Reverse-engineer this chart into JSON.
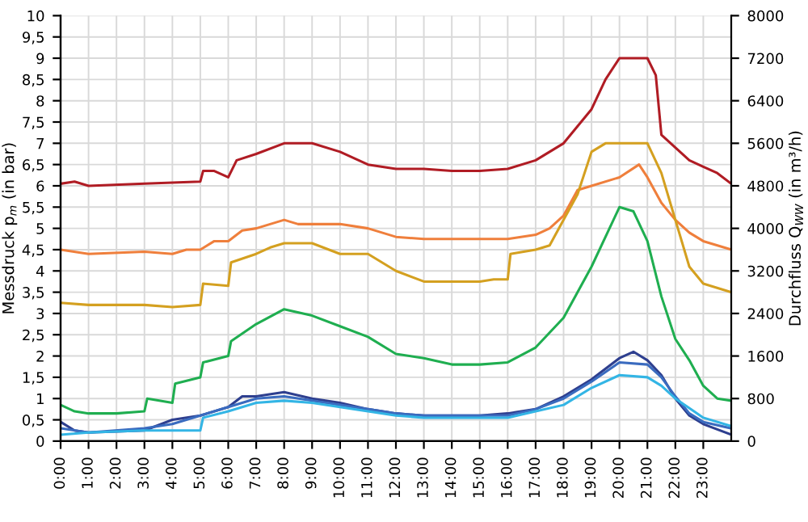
{
  "chart_data": {
    "type": "line",
    "ylabel": "Messdruck p$_{m}$ (in bar)",
    "y2label": "Durchfluss Q$_{WW}$ (in m³/h)",
    "xlim": [
      0,
      24
    ],
    "xticks": [
      {
        "value": 0,
        "label": "0:00"
      },
      {
        "value": 1,
        "label": "1:00"
      },
      {
        "value": 2,
        "label": "2:00"
      },
      {
        "value": 3,
        "label": "3:00"
      },
      {
        "value": 4,
        "label": "4:00"
      },
      {
        "value": 5,
        "label": "5:00"
      },
      {
        "value": 6,
        "label": "6:00"
      },
      {
        "value": 7,
        "label": "7:00"
      },
      {
        "value": 8,
        "label": "8:00"
      },
      {
        "value": 9,
        "label": "9:00"
      },
      {
        "value": 10,
        "label": "10:00"
      },
      {
        "value": 11,
        "label": "11:00"
      },
      {
        "value": 12,
        "label": "12:00"
      },
      {
        "value": 13,
        "label": "13:00"
      },
      {
        "value": 14,
        "label": "14:00"
      },
      {
        "value": 15,
        "label": "15:00"
      },
      {
        "value": 16,
        "label": "16:00"
      },
      {
        "value": 17,
        "label": "17:00"
      },
      {
        "value": 18,
        "label": "18:00"
      },
      {
        "value": 19,
        "label": "19:00"
      },
      {
        "value": 20,
        "label": "20:00"
      },
      {
        "value": 21,
        "label": "21:00"
      },
      {
        "value": 22,
        "label": "22:00"
      },
      {
        "value": 23,
        "label": "23:00"
      }
    ],
    "ylim": [
      0,
      10
    ],
    "yticks": [
      0,
      {
        "value": 0.5,
        "label": "0,5"
      },
      1,
      {
        "value": 1.5,
        "label": "1,5"
      },
      2,
      {
        "value": 2.5,
        "label": "2,5"
      },
      3,
      {
        "value": 3.5,
        "label": "3,5"
      },
      4,
      {
        "value": 4.5,
        "label": "4,5"
      },
      5,
      {
        "value": 5.5,
        "label": "5,5"
      },
      6,
      {
        "value": 6.5,
        "label": "6,5"
      },
      7,
      {
        "value": 7.5,
        "label": "7,5"
      },
      8,
      {
        "value": 8.5,
        "label": "8,5"
      },
      9,
      {
        "value": 9.5,
        "label": "9,5"
      },
      10
    ],
    "y2lim": [
      0,
      8000
    ],
    "y2ticks": [
      0,
      800,
      1600,
      2400,
      3200,
      4000,
      4800,
      5600,
      6400,
      7200,
      8000
    ],
    "grid": true,
    "marker": "none",
    "line_style": "solid",
    "series": [
      {
        "color": "#b01c24",
        "x": [
          0,
          0.5,
          1,
          3,
          5,
          5.1,
          5.5,
          6,
          6.3,
          7,
          8,
          9,
          10,
          11,
          12,
          13,
          14,
          15,
          16,
          17,
          18,
          19,
          19.5,
          20,
          21,
          21.3,
          21.5,
          22,
          22.5,
          23,
          23.5,
          24
        ],
        "values": [
          6.05,
          6.1,
          6.0,
          6.05,
          6.1,
          6.35,
          6.35,
          6.2,
          6.6,
          6.75,
          7.0,
          7.0,
          6.8,
          6.5,
          6.4,
          6.4,
          6.35,
          6.35,
          6.4,
          6.6,
          7.0,
          7.8,
          8.5,
          9.0,
          9.0,
          8.6,
          7.2,
          6.9,
          6.6,
          6.45,
          6.3,
          6.05
        ]
      },
      {
        "color": "#ef7f3c",
        "x": [
          0,
          1,
          3,
          4,
          4.5,
          5,
          5.5,
          6,
          6.5,
          7,
          8,
          8.5,
          10,
          11,
          12,
          13,
          14,
          15,
          16,
          17,
          17.5,
          18,
          18.5,
          19,
          20,
          20.7,
          21,
          21.5,
          22,
          22.5,
          23,
          24
        ],
        "values": [
          4.5,
          4.4,
          4.45,
          4.4,
          4.5,
          4.5,
          4.7,
          4.7,
          4.95,
          5.0,
          5.2,
          5.1,
          5.1,
          5.0,
          4.8,
          4.75,
          4.75,
          4.75,
          4.75,
          4.85,
          5.0,
          5.3,
          5.9,
          6.0,
          6.2,
          6.5,
          6.2,
          5.6,
          5.2,
          4.9,
          4.7,
          4.5
        ]
      },
      {
        "color": "#d4a020",
        "x": [
          0,
          1,
          3,
          4,
          5,
          5.1,
          6,
          6.1,
          7,
          7.5,
          8,
          9,
          10,
          11,
          11.5,
          12,
          13,
          14,
          15,
          15.5,
          16,
          16.1,
          17,
          17.5,
          18,
          18.5,
          19,
          19.5,
          20,
          21,
          21.5,
          22,
          22.5,
          23,
          24
        ],
        "values": [
          3.25,
          3.2,
          3.2,
          3.15,
          3.2,
          3.7,
          3.65,
          4.2,
          4.4,
          4.55,
          4.65,
          4.65,
          4.4,
          4.4,
          4.2,
          4.0,
          3.75,
          3.75,
          3.75,
          3.8,
          3.8,
          4.4,
          4.5,
          4.6,
          5.2,
          5.8,
          6.8,
          7.0,
          7.0,
          7.0,
          6.3,
          5.2,
          4.1,
          3.7,
          3.5
        ]
      },
      {
        "color": "#1fae50",
        "x": [
          0,
          0.5,
          1,
          2,
          3,
          3.1,
          4,
          4.1,
          5,
          5.1,
          6,
          6.1,
          7,
          8,
          9,
          10,
          11,
          12,
          13,
          14,
          15,
          16,
          17,
          18,
          19,
          19.5,
          20,
          20.5,
          21,
          21.5,
          22,
          22.5,
          23,
          23.5,
          24
        ],
        "values": [
          0.85,
          0.7,
          0.65,
          0.65,
          0.7,
          1.0,
          0.9,
          1.35,
          1.5,
          1.85,
          2.0,
          2.35,
          2.75,
          3.1,
          2.95,
          2.7,
          2.45,
          2.05,
          1.95,
          1.8,
          1.8,
          1.85,
          2.2,
          2.9,
          4.1,
          4.8,
          5.5,
          5.4,
          4.7,
          3.4,
          2.4,
          1.9,
          1.3,
          1.0,
          0.95
        ]
      },
      {
        "color": "#2e3f8f",
        "x": [
          0,
          0.5,
          1,
          3,
          4,
          5,
          6,
          6.5,
          7,
          8,
          9,
          10,
          11,
          12,
          13,
          14,
          15,
          16,
          17,
          18,
          19,
          20,
          20.5,
          21,
          21.5,
          22,
          22.5,
          23,
          24
        ],
        "values": [
          0.45,
          0.25,
          0.2,
          0.25,
          0.5,
          0.6,
          0.8,
          1.05,
          1.05,
          1.15,
          1.0,
          0.9,
          0.75,
          0.65,
          0.6,
          0.6,
          0.6,
          0.65,
          0.75,
          1.05,
          1.45,
          1.95,
          2.1,
          1.9,
          1.55,
          1.0,
          0.6,
          0.4,
          0.15
        ]
      },
      {
        "color": "#3a6bbf",
        "x": [
          0,
          1,
          3,
          4,
          5,
          6,
          7,
          8,
          9,
          10,
          11,
          12,
          13,
          14,
          15,
          16,
          17,
          18,
          19,
          20,
          21,
          21.5,
          22,
          22.5,
          23,
          24
        ],
        "values": [
          0.3,
          0.2,
          0.3,
          0.4,
          0.6,
          0.8,
          1.0,
          1.05,
          0.95,
          0.85,
          0.75,
          0.65,
          0.6,
          0.6,
          0.6,
          0.6,
          0.75,
          1.0,
          1.4,
          1.85,
          1.8,
          1.5,
          1.05,
          0.65,
          0.45,
          0.3
        ]
      },
      {
        "color": "#33b5e5",
        "x": [
          0,
          1,
          3,
          5,
          5.1,
          6,
          7,
          8,
          9,
          10,
          11,
          12,
          13,
          14,
          15,
          16,
          17,
          18,
          19,
          20,
          21,
          21.5,
          22,
          23,
          24
        ],
        "values": [
          0.15,
          0.2,
          0.25,
          0.25,
          0.55,
          0.7,
          0.9,
          0.95,
          0.9,
          0.8,
          0.7,
          0.6,
          0.55,
          0.55,
          0.55,
          0.55,
          0.7,
          0.85,
          1.25,
          1.55,
          1.5,
          1.3,
          1.0,
          0.55,
          0.35
        ]
      }
    ]
  }
}
